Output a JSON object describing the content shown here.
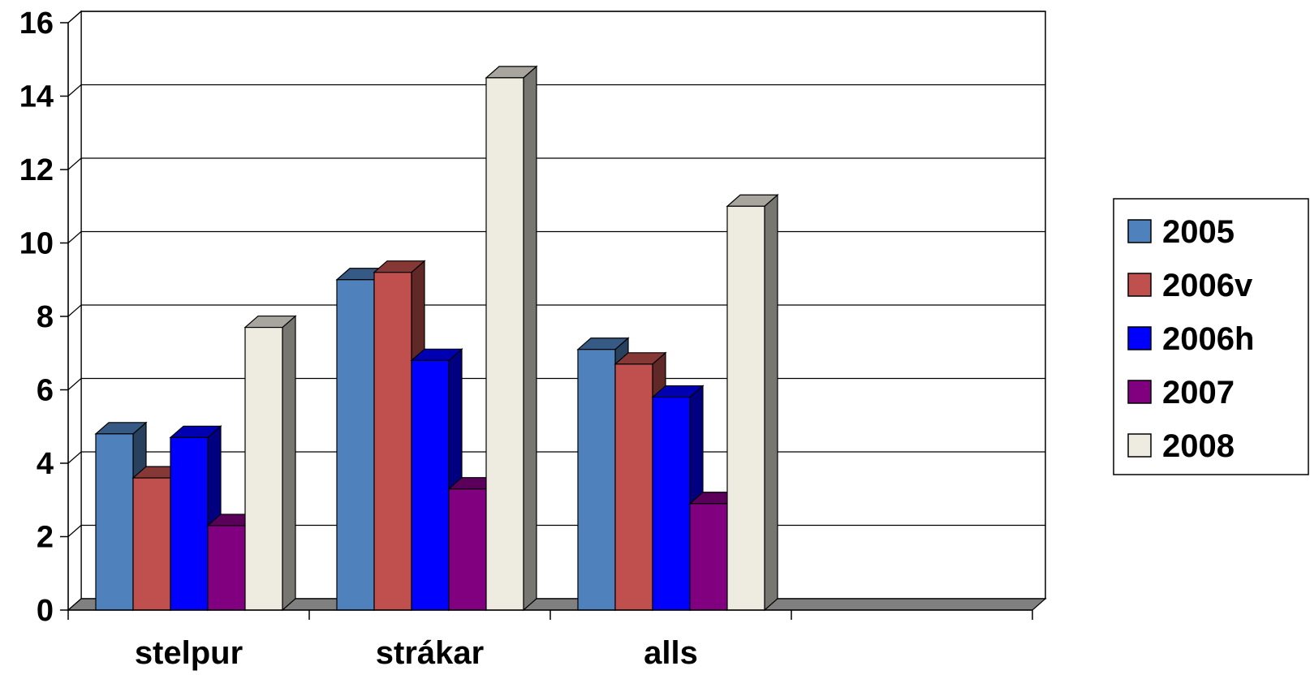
{
  "chart_data": {
    "type": "bar",
    "title": "",
    "xlabel": "",
    "ylabel": "",
    "categories": [
      "stelpur",
      "strákar",
      "alls",
      ""
    ],
    "series": [
      {
        "name": "2005",
        "color": "#4F81BD",
        "values": [
          4.8,
          9.0,
          7.1,
          null
        ]
      },
      {
        "name": "2006v",
        "color": "#C0504D",
        "values": [
          3.6,
          9.2,
          6.7,
          null
        ]
      },
      {
        "name": "2006h",
        "color": "#0000FF",
        "values": [
          4.7,
          6.8,
          5.8,
          null
        ]
      },
      {
        "name": "2007",
        "color": "#800080",
        "values": [
          2.3,
          3.3,
          2.9,
          null
        ]
      },
      {
        "name": "2008",
        "color": "#EEECE1",
        "values": [
          7.7,
          14.5,
          11.0,
          null
        ]
      }
    ],
    "ylim": [
      0,
      16
    ],
    "yticks": [
      0,
      2,
      4,
      6,
      8,
      10,
      12,
      14,
      16
    ],
    "grid": true,
    "legend_position": "right",
    "style": "3d-clustered-column"
  }
}
